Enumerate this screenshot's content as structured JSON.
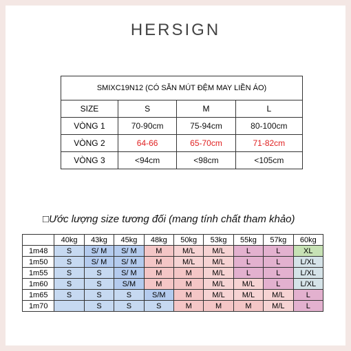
{
  "header": {
    "logo": "HERSIGN"
  },
  "spec_table": {
    "title": "SMIXC19N12 (CÓ SẴN MÚT ĐỆM MAY LIỀN ÁO)",
    "columns": [
      "SIZE",
      "S",
      "M",
      "L"
    ],
    "rows": [
      {
        "label": "VÒNG 1",
        "values": [
          "70-90cm",
          "75-94cm",
          "80-100cm"
        ],
        "color": "#111111"
      },
      {
        "label": "VÒNG 2",
        "values": [
          "64-66",
          "65-70cm",
          "71-82cm"
        ],
        "color": "#e02020"
      },
      {
        "label": "VÒNG 3",
        "values": [
          "<94cm",
          "<98cm",
          "<105cm"
        ],
        "color": "#111111"
      }
    ]
  },
  "size_table": {
    "heading": "□Ước lượng size tương đối (mang tính chất tham khảo)",
    "weights": [
      "40kg",
      "43kg",
      "45kg",
      "48kg",
      "50kg",
      "53kg",
      "55kg",
      "57kg",
      "60kg"
    ],
    "rows": [
      {
        "height": "1m48",
        "sizes": [
          "S",
          "S/ M",
          "S/ M",
          "M",
          "M/L",
          "M/L",
          "L",
          "L",
          "XL"
        ]
      },
      {
        "height": "1m50",
        "sizes": [
          "S",
          "S/ M",
          "S/ M",
          "M",
          "M/L",
          "M/L",
          "L",
          "L",
          "L/XL"
        ]
      },
      {
        "height": "1m55",
        "sizes": [
          "S",
          "S",
          "S/ M",
          "M",
          "M",
          "M/L",
          "L",
          "L",
          "L/XL"
        ]
      },
      {
        "height": "1m60",
        "sizes": [
          "S",
          "S",
          "S/M",
          "M",
          "M",
          "M/L",
          "M/L",
          "L",
          "L/XL"
        ]
      },
      {
        "height": "1m65",
        "sizes": [
          "S",
          "S",
          "S",
          "S/M",
          "M",
          "M/L",
          "M/L",
          "M/L",
          "L"
        ]
      },
      {
        "height": "1m70",
        "sizes": [
          null,
          "S",
          "S",
          "S",
          "M",
          "M",
          "M",
          "M/L",
          "L"
        ]
      }
    ],
    "colors": {
      "S": "#c6d9f1",
      "S/ M": "#b4cbee",
      "S/M": "#b4cbee",
      "M": "#f4c6c6",
      "M/L": "#f6d3d3",
      "L": "#e3b1cf",
      "XL": "#c7e2b5",
      "L/XL": "#d5e3e8"
    },
    "empty_color": "#c6d9f1"
  }
}
